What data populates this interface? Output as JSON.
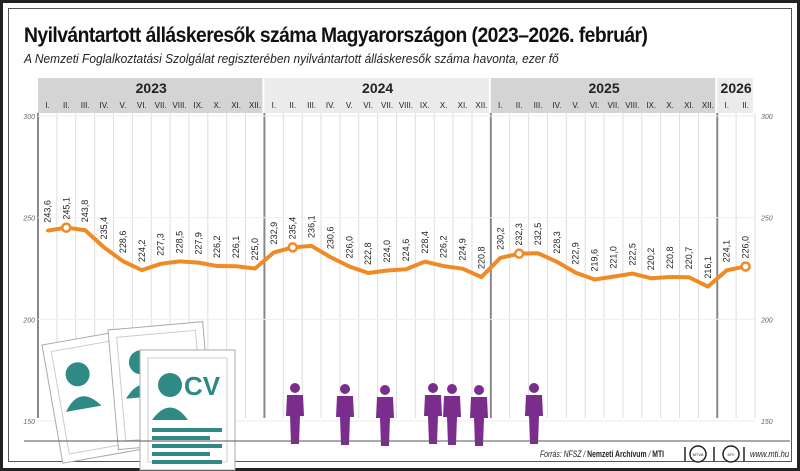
{
  "title": "Nyilvántartott álláskeresők száma Magyarországon (2023–2026. február)",
  "subtitle": "A Nemzeti Foglalkoztatási Szolgálat regiszterében nyilvántartott álláskeresők száma havonta, ezer fő",
  "footer": {
    "source_prefix": "Forrás: NFSZ / ",
    "source_archive": "Nemzeti Archívum",
    "source_sep": " / ",
    "source_mti": "MTI",
    "logo1": "MTVA",
    "logo2": "MTI",
    "website": "www.mti.hu"
  },
  "illustration": {
    "cv_text": "CV"
  },
  "colors": {
    "line": "#f08a24",
    "header_dark": "#d4d4d4",
    "header_light": "#ebebeb",
    "silhouette": "#7b2d8e",
    "paper": "#2f8a85"
  },
  "chart_data": {
    "type": "line",
    "title": "Nyilvántartott álláskeresők száma Magyarországon (2023–2026. február)",
    "ylabel": "ezer fő",
    "ylim": [
      150,
      300
    ],
    "yticks": [
      150,
      200,
      250,
      300
    ],
    "grid": true,
    "years": [
      {
        "label": "2023",
        "months": [
          "I.",
          "II.",
          "III.",
          "IV.",
          "V.",
          "VI.",
          "VII.",
          "VIII.",
          "IX.",
          "X.",
          "XI.",
          "XII."
        ],
        "values": [
          243.6,
          245.1,
          243.8,
          235.4,
          228.6,
          224.2,
          227.3,
          228.5,
          227.9,
          226.2,
          226.1,
          225.0
        ],
        "value_labels": [
          "243,6",
          "245,1",
          "243,8",
          "235,4",
          "228,6",
          "224,2",
          "227,3",
          "228,5",
          "227,9",
          "226,2",
          "226,1",
          "225,0"
        ]
      },
      {
        "label": "2024",
        "months": [
          "I.",
          "II.",
          "III.",
          "IV.",
          "V.",
          "VI.",
          "VII.",
          "VIII.",
          "IX.",
          "X.",
          "XI.",
          "XII."
        ],
        "values": [
          232.9,
          235.4,
          236.1,
          230.6,
          226.0,
          222.8,
          224.0,
          224.6,
          228.4,
          226.2,
          224.9,
          220.8
        ],
        "value_labels": [
          "232,9",
          "235,4",
          "236,1",
          "230,6",
          "226,0",
          "222,8",
          "224,0",
          "224,6",
          "228,4",
          "226,2",
          "224,9",
          "220,8"
        ]
      },
      {
        "label": "2025",
        "months": [
          "I.",
          "II.",
          "III.",
          "IV.",
          "V.",
          "VI.",
          "VII.",
          "VIII.",
          "IX.",
          "X.",
          "XI.",
          "XII."
        ],
        "values": [
          230.2,
          232.3,
          232.5,
          228.3,
          222.9,
          219.6,
          221.0,
          222.5,
          220.2,
          220.8,
          220.7,
          216.1
        ],
        "value_labels": [
          "230,2",
          "232,3",
          "232,5",
          "228,3",
          "222,9",
          "219,6",
          "221,0",
          "222,5",
          "220,2",
          "220,8",
          "220,7",
          "216,1"
        ]
      },
      {
        "label": "2026",
        "months": [
          "I.",
          "II."
        ],
        "values": [
          224.1,
          226.0
        ],
        "value_labels": [
          "224,1",
          "226,0"
        ]
      }
    ],
    "highlighted_points": [
      "2023-II.",
      "2024-II.",
      "2025-II.",
      "2026-II."
    ]
  }
}
